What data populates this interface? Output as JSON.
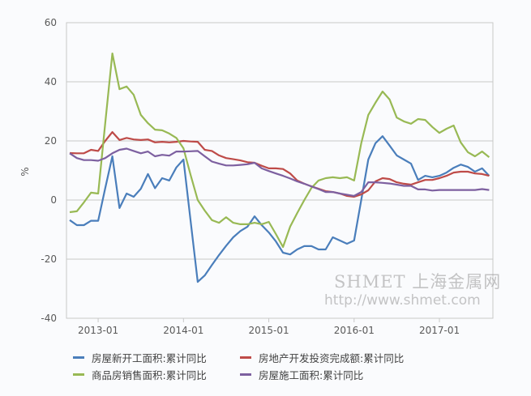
{
  "chart_data": {
    "type": "line",
    "title": "",
    "xlabel": "",
    "ylabel": "%",
    "ylim": [
      -40,
      60
    ],
    "yticks": [
      60,
      40,
      20,
      0,
      -20,
      -40
    ],
    "xtick_labels": [
      "2013-01",
      "2014-01",
      "2015-01",
      "2016-01",
      "2017-01"
    ],
    "grid": "horizontal",
    "legend_position": "bottom",
    "x": [
      "2012-09",
      "2012-10",
      "2012-11",
      "2012-12",
      "2013-01",
      "2013-02",
      "2013-03",
      "2013-04",
      "2013-05",
      "2013-06",
      "2013-07",
      "2013-08",
      "2013-09",
      "2013-10",
      "2013-11",
      "2013-12",
      "2014-01",
      "2014-02",
      "2014-03",
      "2014-04",
      "2014-05",
      "2014-06",
      "2014-07",
      "2014-08",
      "2014-09",
      "2014-10",
      "2014-11",
      "2014-12",
      "2015-01",
      "2015-02",
      "2015-03",
      "2015-04",
      "2015-05",
      "2015-06",
      "2015-07",
      "2015-08",
      "2015-09",
      "2015-10",
      "2015-11",
      "2015-12",
      "2016-01",
      "2016-02",
      "2016-03",
      "2016-04",
      "2016-05",
      "2016-06",
      "2016-07",
      "2016-08",
      "2016-09",
      "2016-10",
      "2016-11",
      "2016-12",
      "2017-01",
      "2017-02",
      "2017-03",
      "2017-04",
      "2017-05",
      "2017-06",
      "2017-07",
      "2017-08"
    ],
    "series": [
      {
        "name": "房屋新开工面积:累计同比",
        "color": "#4a7ebb",
        "values": [
          -6.8,
          -8.5,
          -8.5,
          -7,
          -7,
          4,
          14.8,
          -2.7,
          2.2,
          1.1,
          3.8,
          8.8,
          4,
          7.4,
          6.6,
          11,
          13.7,
          -7,
          -27.7,
          -25.5,
          -22,
          -18.6,
          -15.5,
          -12.6,
          -10.5,
          -9,
          -5.5,
          -8.5,
          -11,
          -14,
          -17.8,
          -18.4,
          -16.7,
          -15.6,
          -15.6,
          -16.7,
          -16.7,
          -12.6,
          -13.7,
          -14.8,
          -13.7,
          0,
          13.7,
          19.2,
          21.6,
          18.4,
          15.1,
          13.7,
          12.3,
          6.8,
          8.2,
          7.7,
          8.2,
          9.3,
          10.9,
          12,
          11.2,
          9.6,
          10.7,
          8.2
        ]
      },
      {
        "name": "房地产开发投资完成额:累计同比",
        "color": "#be4b48",
        "values": [
          15.9,
          15.8,
          15.8,
          17,
          16.6,
          20,
          23,
          20.3,
          21,
          20.5,
          20.3,
          20.5,
          19.5,
          19.7,
          19.5,
          19.7,
          20,
          19.8,
          19.7,
          17,
          16.6,
          15.1,
          14.2,
          13.8,
          13.4,
          12.8,
          12.6,
          11.6,
          10.7,
          10.7,
          10.5,
          9,
          6.6,
          5.5,
          4.6,
          3.8,
          3,
          2.7,
          2.2,
          1.4,
          1.1,
          1.9,
          3.3,
          6.3,
          7.4,
          7.1,
          6,
          5.5,
          5.2,
          6,
          6.8,
          6.8,
          7.4,
          8.2,
          9.3,
          9.6,
          9.6,
          9,
          8.8,
          8.2
        ]
      },
      {
        "name": "商品房销售面积:累计同比",
        "color": "#98b954",
        "values": [
          -4.1,
          -3.8,
          -0.8,
          2.5,
          2.2,
          26,
          49.6,
          37.5,
          38.4,
          35.6,
          28.8,
          26,
          23.8,
          23.6,
          22.5,
          21,
          17.5,
          8.5,
          0,
          -3.6,
          -6.8,
          -7.7,
          -5.8,
          -7.7,
          -8.2,
          -8.2,
          -7.7,
          -8.2,
          -7.4,
          -11.5,
          -15.9,
          -9,
          -4.4,
          0,
          4.1,
          6.6,
          7.4,
          7.7,
          7.4,
          7.7,
          6.6,
          19.2,
          28.8,
          32.9,
          36.7,
          34,
          27.9,
          26.6,
          25.8,
          27.4,
          27.1,
          24.7,
          22.7,
          24.1,
          25.2,
          19.5,
          16.2,
          14.8,
          16.4,
          14.5
        ]
      },
      {
        "name": "房屋施工面积:累计同比",
        "color": "#7d60a0",
        "values": [
          15.8,
          14.2,
          13.5,
          13.5,
          13.3,
          14.2,
          15.8,
          17,
          17.4,
          16.6,
          15.8,
          16.4,
          14.8,
          15.3,
          15,
          16.4,
          16.4,
          16.5,
          16.6,
          14.8,
          13,
          12.3,
          11.7,
          11.7,
          11.9,
          12.1,
          12.6,
          10.7,
          9.8,
          9,
          8.2,
          7.3,
          6.3,
          5.5,
          4.6,
          3.7,
          2.7,
          2.7,
          2.2,
          1.8,
          1.4,
          2.7,
          6,
          6,
          5.8,
          5.6,
          5.2,
          4.8,
          4.8,
          3.6,
          3.6,
          3.2,
          3.4,
          3.4,
          3.4,
          3.4,
          3.4,
          3.4,
          3.7,
          3.4
        ]
      }
    ]
  },
  "watermark": {
    "logo": "SHMET 上海金属网",
    "url": "http://www.shmet.com"
  }
}
